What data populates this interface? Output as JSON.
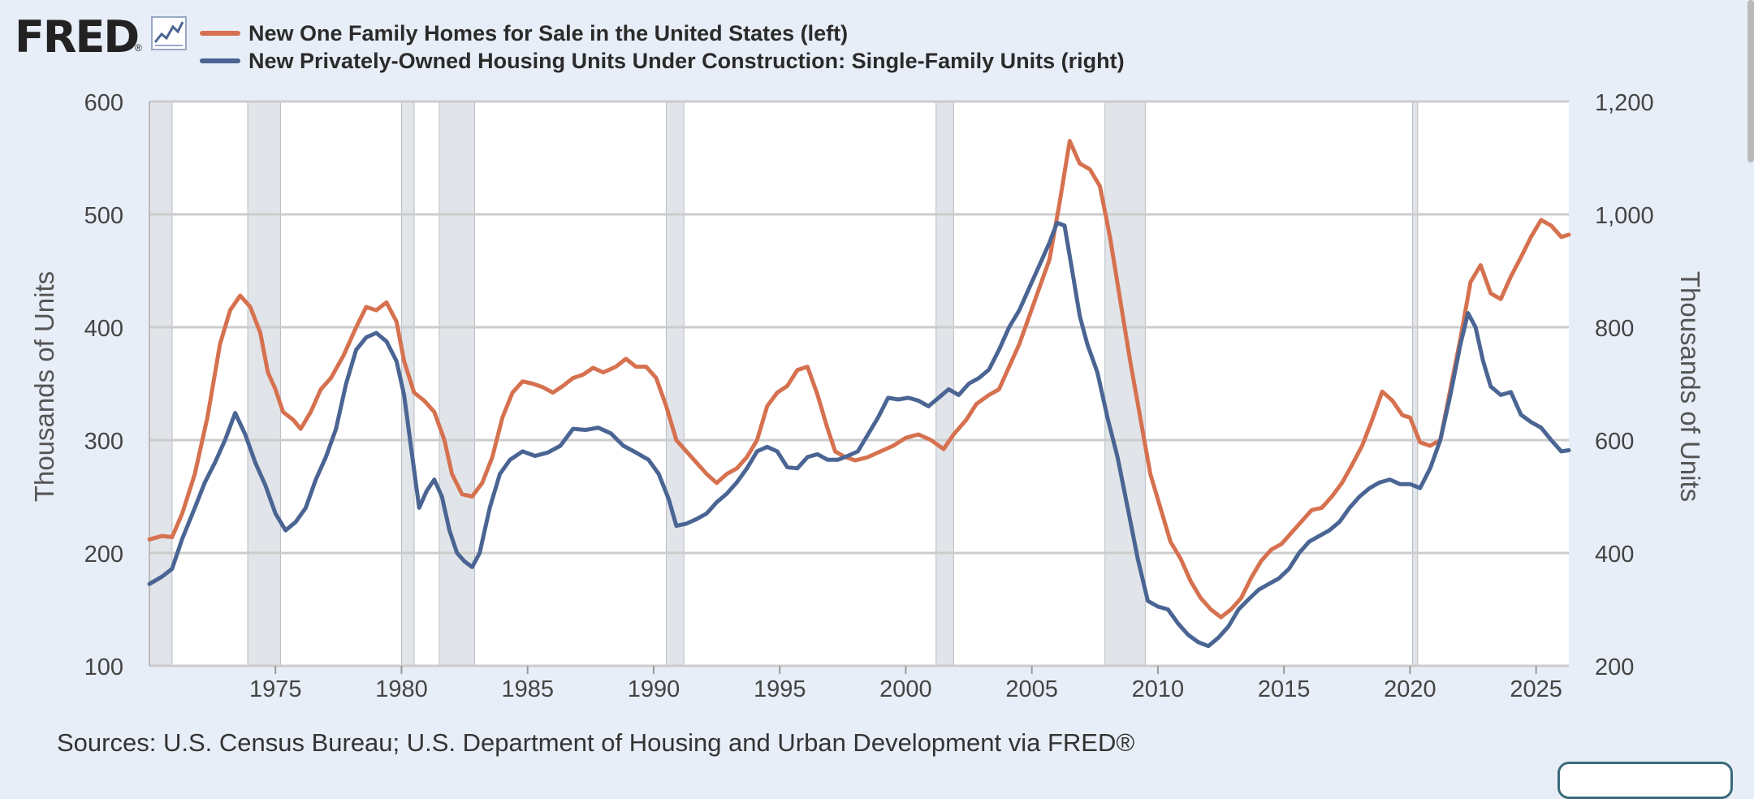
{
  "logo": {
    "text": "FRED",
    "reg": "®",
    "icon": "line-chart-icon"
  },
  "sources": "Sources: U.S. Census Bureau; U.S. Department of Housing and Urban Development via FRED®",
  "colors": {
    "background": "#e8eef7",
    "left_series": "#d6714f",
    "right_series": "#4a6593",
    "recession": "#e1e4e8",
    "grid": "#cccccc"
  },
  "chart_data": {
    "type": "line",
    "ylabel_left": "Thousands of Units",
    "ylabel_right": "Thousands of Units",
    "ylim_left": [
      100,
      600
    ],
    "ylim_right": [
      200,
      1200
    ],
    "xlim": [
      1970.0,
      2026.3
    ],
    "x_ticks": [
      "1975",
      "1980",
      "1985",
      "1990",
      "1995",
      "2000",
      "2005",
      "2010",
      "2015",
      "2020",
      "2025"
    ],
    "y_ticks_left": [
      "100",
      "200",
      "300",
      "400",
      "500",
      "600"
    ],
    "y_ticks_right": [
      "200",
      "400",
      "600",
      "800",
      "1,000",
      "1,200"
    ],
    "grid": true,
    "legend": "top-left",
    "recessions": [
      [
        1970.0,
        1970.9
      ],
      [
        1973.9,
        1975.2
      ],
      [
        1980.0,
        1980.5
      ],
      [
        1981.5,
        1982.9
      ],
      [
        1990.5,
        1991.2
      ],
      [
        2001.2,
        2001.9
      ],
      [
        2007.9,
        2009.5
      ],
      [
        2020.1,
        2020.3
      ]
    ],
    "series": [
      {
        "name": "New One Family Homes for Sale in the United States (left)",
        "axis": "left",
        "color": "#d6714f",
        "points": [
          [
            1970.0,
            212
          ],
          [
            1970.5,
            215
          ],
          [
            1970.9,
            214
          ],
          [
            1971.3,
            235
          ],
          [
            1971.8,
            270
          ],
          [
            1972.3,
            320
          ],
          [
            1972.8,
            385
          ],
          [
            1973.2,
            415
          ],
          [
            1973.6,
            428
          ],
          [
            1974.0,
            418
          ],
          [
            1974.4,
            395
          ],
          [
            1974.7,
            360
          ],
          [
            1975.0,
            345
          ],
          [
            1975.3,
            325
          ],
          [
            1975.7,
            318
          ],
          [
            1976.0,
            310
          ],
          [
            1976.4,
            325
          ],
          [
            1976.8,
            345
          ],
          [
            1977.2,
            355
          ],
          [
            1977.7,
            375
          ],
          [
            1978.2,
            400
          ],
          [
            1978.6,
            418
          ],
          [
            1979.0,
            415
          ],
          [
            1979.4,
            422
          ],
          [
            1979.8,
            405
          ],
          [
            1980.1,
            370
          ],
          [
            1980.5,
            342
          ],
          [
            1980.9,
            335
          ],
          [
            1981.3,
            325
          ],
          [
            1981.7,
            300
          ],
          [
            1982.0,
            270
          ],
          [
            1982.4,
            252
          ],
          [
            1982.8,
            250
          ],
          [
            1983.2,
            262
          ],
          [
            1983.6,
            285
          ],
          [
            1984.0,
            320
          ],
          [
            1984.4,
            342
          ],
          [
            1984.8,
            352
          ],
          [
            1985.2,
            350
          ],
          [
            1985.6,
            347
          ],
          [
            1986.0,
            342
          ],
          [
            1986.4,
            348
          ],
          [
            1986.8,
            355
          ],
          [
            1987.2,
            358
          ],
          [
            1987.6,
            364
          ],
          [
            1988.0,
            360
          ],
          [
            1988.5,
            365
          ],
          [
            1988.9,
            372
          ],
          [
            1989.3,
            365
          ],
          [
            1989.7,
            365
          ],
          [
            1990.1,
            355
          ],
          [
            1990.5,
            330
          ],
          [
            1990.9,
            300
          ],
          [
            1991.3,
            290
          ],
          [
            1991.7,
            280
          ],
          [
            1992.1,
            270
          ],
          [
            1992.5,
            262
          ],
          [
            1992.9,
            270
          ],
          [
            1993.3,
            275
          ],
          [
            1993.7,
            285
          ],
          [
            1994.1,
            300
          ],
          [
            1994.5,
            330
          ],
          [
            1994.9,
            342
          ],
          [
            1995.3,
            348
          ],
          [
            1995.7,
            362
          ],
          [
            1996.1,
            365
          ],
          [
            1996.5,
            340
          ],
          [
            1996.9,
            310
          ],
          [
            1997.2,
            290
          ],
          [
            1997.6,
            285
          ],
          [
            1998.0,
            282
          ],
          [
            1998.5,
            285
          ],
          [
            1999.0,
            290
          ],
          [
            1999.5,
            295
          ],
          [
            2000.0,
            302
          ],
          [
            2000.5,
            305
          ],
          [
            2001.0,
            300
          ],
          [
            2001.5,
            292
          ],
          [
            2001.9,
            305
          ],
          [
            2002.4,
            318
          ],
          [
            2002.8,
            332
          ],
          [
            2003.3,
            340
          ],
          [
            2003.7,
            345
          ],
          [
            2004.1,
            365
          ],
          [
            2004.5,
            385
          ],
          [
            2004.9,
            410
          ],
          [
            2005.3,
            435
          ],
          [
            2005.7,
            460
          ],
          [
            2006.1,
            510
          ],
          [
            2006.5,
            565
          ],
          [
            2006.9,
            545
          ],
          [
            2007.3,
            540
          ],
          [
            2007.7,
            525
          ],
          [
            2008.1,
            480
          ],
          [
            2008.5,
            425
          ],
          [
            2008.9,
            370
          ],
          [
            2009.3,
            320
          ],
          [
            2009.7,
            270
          ],
          [
            2010.1,
            240
          ],
          [
            2010.5,
            210
          ],
          [
            2010.9,
            195
          ],
          [
            2011.3,
            175
          ],
          [
            2011.7,
            160
          ],
          [
            2012.1,
            150
          ],
          [
            2012.5,
            143
          ],
          [
            2012.9,
            150
          ],
          [
            2013.3,
            160
          ],
          [
            2013.7,
            178
          ],
          [
            2014.1,
            193
          ],
          [
            2014.5,
            203
          ],
          [
            2014.9,
            208
          ],
          [
            2015.3,
            218
          ],
          [
            2015.7,
            228
          ],
          [
            2016.1,
            238
          ],
          [
            2016.5,
            240
          ],
          [
            2016.9,
            250
          ],
          [
            2017.3,
            262
          ],
          [
            2017.7,
            278
          ],
          [
            2018.1,
            295
          ],
          [
            2018.5,
            318
          ],
          [
            2018.9,
            343
          ],
          [
            2019.3,
            335
          ],
          [
            2019.7,
            322
          ],
          [
            2020.0,
            320
          ],
          [
            2020.4,
            298
          ],
          [
            2020.8,
            295
          ],
          [
            2021.2,
            300
          ],
          [
            2021.6,
            345
          ],
          [
            2022.0,
            390
          ],
          [
            2022.4,
            440
          ],
          [
            2022.8,
            455
          ],
          [
            2023.2,
            430
          ],
          [
            2023.6,
            425
          ],
          [
            2024.0,
            445
          ],
          [
            2024.4,
            462
          ],
          [
            2024.8,
            480
          ],
          [
            2025.2,
            495
          ],
          [
            2025.6,
            490
          ],
          [
            2026.0,
            480
          ],
          [
            2026.3,
            482
          ]
        ]
      },
      {
        "name": "New Privately-Owned Housing Units Under Construction: Single-Family Units (right)",
        "axis": "right",
        "color": "#4a6593",
        "points": [
          [
            1970.0,
            345
          ],
          [
            1970.5,
            358
          ],
          [
            1970.9,
            372
          ],
          [
            1971.3,
            425
          ],
          [
            1971.8,
            480
          ],
          [
            1972.2,
            525
          ],
          [
            1972.6,
            560
          ],
          [
            1973.0,
            600
          ],
          [
            1973.4,
            648
          ],
          [
            1973.8,
            610
          ],
          [
            1974.2,
            560
          ],
          [
            1974.6,
            520
          ],
          [
            1975.0,
            470
          ],
          [
            1975.4,
            440
          ],
          [
            1975.8,
            455
          ],
          [
            1976.2,
            480
          ],
          [
            1976.6,
            530
          ],
          [
            1977.0,
            570
          ],
          [
            1977.4,
            620
          ],
          [
            1977.8,
            700
          ],
          [
            1978.2,
            760
          ],
          [
            1978.6,
            782
          ],
          [
            1979.0,
            790
          ],
          [
            1979.4,
            775
          ],
          [
            1979.8,
            740
          ],
          [
            1980.1,
            680
          ],
          [
            1980.4,
            580
          ],
          [
            1980.7,
            480
          ],
          [
            1981.0,
            510
          ],
          [
            1981.3,
            530
          ],
          [
            1981.6,
            500
          ],
          [
            1981.9,
            440
          ],
          [
            1982.2,
            400
          ],
          [
            1982.5,
            385
          ],
          [
            1982.8,
            375
          ],
          [
            1983.1,
            400
          ],
          [
            1983.5,
            480
          ],
          [
            1983.9,
            540
          ],
          [
            1984.3,
            565
          ],
          [
            1984.8,
            580
          ],
          [
            1985.3,
            572
          ],
          [
            1985.8,
            578
          ],
          [
            1986.3,
            590
          ],
          [
            1986.8,
            620
          ],
          [
            1987.3,
            618
          ],
          [
            1987.8,
            622
          ],
          [
            1988.3,
            612
          ],
          [
            1988.8,
            590
          ],
          [
            1989.3,
            578
          ],
          [
            1989.8,
            565
          ],
          [
            1990.2,
            540
          ],
          [
            1990.6,
            495
          ],
          [
            1990.9,
            448
          ],
          [
            1991.3,
            452
          ],
          [
            1991.7,
            460
          ],
          [
            1992.1,
            470
          ],
          [
            1992.5,
            490
          ],
          [
            1992.9,
            505
          ],
          [
            1993.3,
            525
          ],
          [
            1993.7,
            550
          ],
          [
            1994.1,
            580
          ],
          [
            1994.5,
            588
          ],
          [
            1994.9,
            580
          ],
          [
            1995.3,
            552
          ],
          [
            1995.7,
            550
          ],
          [
            1996.1,
            570
          ],
          [
            1996.5,
            575
          ],
          [
            1996.9,
            565
          ],
          [
            1997.3,
            565
          ],
          [
            1997.7,
            572
          ],
          [
            1998.1,
            580
          ],
          [
            1998.5,
            610
          ],
          [
            1998.9,
            640
          ],
          [
            1999.3,
            675
          ],
          [
            1999.7,
            672
          ],
          [
            2000.1,
            675
          ],
          [
            2000.5,
            670
          ],
          [
            2000.9,
            660
          ],
          [
            2001.3,
            675
          ],
          [
            2001.7,
            690
          ],
          [
            2002.1,
            680
          ],
          [
            2002.5,
            700
          ],
          [
            2002.9,
            710
          ],
          [
            2003.3,
            725
          ],
          [
            2003.7,
            760
          ],
          [
            2004.1,
            800
          ],
          [
            2004.5,
            830
          ],
          [
            2004.9,
            870
          ],
          [
            2005.3,
            910
          ],
          [
            2005.7,
            950
          ],
          [
            2006.0,
            985
          ],
          [
            2006.3,
            980
          ],
          [
            2006.6,
            900
          ],
          [
            2006.9,
            820
          ],
          [
            2007.2,
            770
          ],
          [
            2007.6,
            720
          ],
          [
            2008.0,
            640
          ],
          [
            2008.4,
            570
          ],
          [
            2008.8,
            480
          ],
          [
            2009.2,
            390
          ],
          [
            2009.6,
            315
          ],
          [
            2010.0,
            305
          ],
          [
            2010.4,
            300
          ],
          [
            2010.8,
            275
          ],
          [
            2011.2,
            255
          ],
          [
            2011.6,
            242
          ],
          [
            2012.0,
            235
          ],
          [
            2012.4,
            250
          ],
          [
            2012.8,
            270
          ],
          [
            2013.2,
            300
          ],
          [
            2013.6,
            318
          ],
          [
            2014.0,
            335
          ],
          [
            2014.4,
            345
          ],
          [
            2014.8,
            355
          ],
          [
            2015.2,
            372
          ],
          [
            2015.6,
            400
          ],
          [
            2016.0,
            420
          ],
          [
            2016.4,
            430
          ],
          [
            2016.8,
            440
          ],
          [
            2017.2,
            455
          ],
          [
            2017.6,
            480
          ],
          [
            2018.0,
            500
          ],
          [
            2018.4,
            515
          ],
          [
            2018.8,
            525
          ],
          [
            2019.2,
            530
          ],
          [
            2019.6,
            522
          ],
          [
            2020.0,
            522
          ],
          [
            2020.4,
            515
          ],
          [
            2020.8,
            550
          ],
          [
            2021.2,
            600
          ],
          [
            2021.6,
            680
          ],
          [
            2022.0,
            770
          ],
          [
            2022.3,
            825
          ],
          [
            2022.6,
            800
          ],
          [
            2022.9,
            740
          ],
          [
            2023.2,
            695
          ],
          [
            2023.6,
            680
          ],
          [
            2024.0,
            685
          ],
          [
            2024.4,
            645
          ],
          [
            2024.8,
            632
          ],
          [
            2025.2,
            622
          ],
          [
            2025.6,
            600
          ],
          [
            2026.0,
            580
          ],
          [
            2026.3,
            582
          ]
        ]
      }
    ]
  }
}
